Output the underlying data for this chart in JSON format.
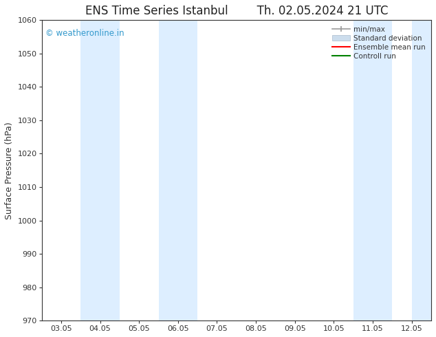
{
  "title1": "ENS Time Series Istanbul",
  "title2": "Th. 02.05.2024 21 UTC",
  "ylabel": "Surface Pressure (hPa)",
  "ylim": [
    970,
    1060
  ],
  "yticks": [
    970,
    980,
    990,
    1000,
    1010,
    1020,
    1030,
    1040,
    1050,
    1060
  ],
  "xtick_labels": [
    "03.05",
    "04.05",
    "05.05",
    "06.05",
    "07.05",
    "08.05",
    "09.05",
    "10.05",
    "11.05",
    "12.05"
  ],
  "xtick_positions": [
    0,
    1,
    2,
    3,
    4,
    5,
    6,
    7,
    8,
    9
  ],
  "xlim": [
    -0.5,
    9.5
  ],
  "shaded_ranges": [
    [
      0.5,
      1.5
    ],
    [
      2.5,
      3.5
    ],
    [
      7.5,
      8.5
    ],
    [
      9.0,
      9.5
    ]
  ],
  "band_color": "#ddeeff",
  "watermark": "© weatheronline.in",
  "watermark_color": "#3399cc",
  "legend_items": [
    {
      "label": "min/max",
      "type": "errorbar",
      "color": "#999999"
    },
    {
      "label": "Standard deviation",
      "type": "bar",
      "color": "#ccdded"
    },
    {
      "label": "Ensemble mean run",
      "type": "line",
      "color": "red",
      "lw": 1.5
    },
    {
      "label": "Controll run",
      "type": "line",
      "color": "green",
      "lw": 1.5
    }
  ],
  "bg_color": "#ffffff",
  "plot_bg_color": "#ffffff",
  "tick_color": "#333333",
  "axis_color": "#333333",
  "title_fontsize": 12,
  "label_fontsize": 9,
  "tick_fontsize": 8
}
